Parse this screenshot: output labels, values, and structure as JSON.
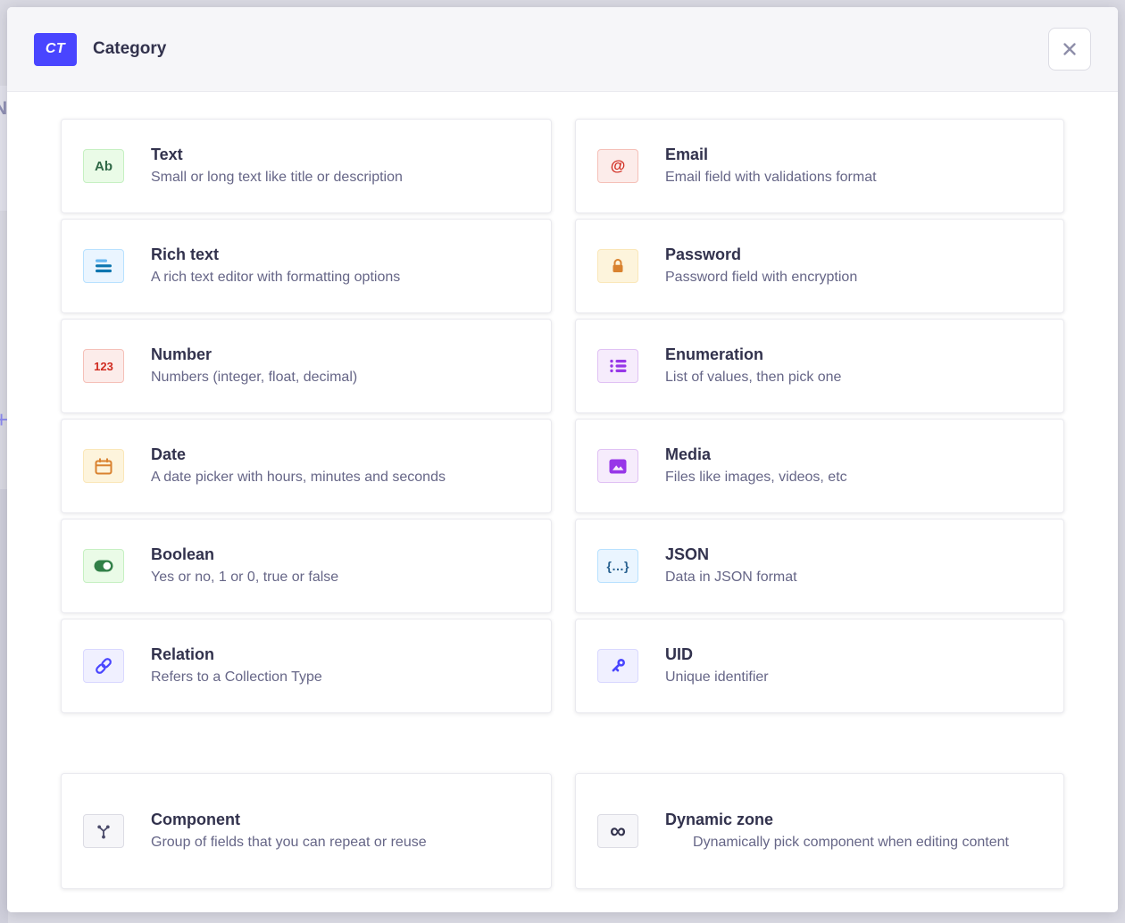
{
  "backdrop": {
    "glyphs": [
      "N",
      "+"
    ]
  },
  "modal": {
    "badge_label": "CT",
    "title": "Category",
    "close_icon": "x"
  },
  "colors": {
    "accent": "#4945ff",
    "header_bg": "#f6f6f9",
    "modal_bg": "#ffffff",
    "card_border": "#eaeaef",
    "title_text": "#32324d",
    "description_text": "#666687",
    "close_icon": "#8e8ea9"
  },
  "fields": [
    {
      "id": "text",
      "title": "Text",
      "description": "Small or long text like title or description",
      "icon": "ab-icon",
      "icon_kind": "glyph",
      "glyph": "Ab",
      "glyph_size": 15,
      "icon_bg": "#eafbe7",
      "icon_border": "#c6f0c2",
      "icon_fg": "#2f6846"
    },
    {
      "id": "email",
      "title": "Email",
      "description": "Email field with validations format",
      "icon": "at-sign-icon",
      "icon_kind": "glyph",
      "glyph": "@",
      "glyph_size": 17,
      "icon_bg": "#fcecea",
      "icon_border": "#f5c0b8",
      "icon_fg": "#d02b20"
    },
    {
      "id": "richtext",
      "title": "Rich text",
      "description": "A rich text editor with formatting options",
      "icon": "text-lines-icon",
      "icon_kind": "richtext",
      "glyph": "",
      "glyph_size": 0,
      "icon_bg": "#eaf5ff",
      "icon_border": "#b8e1ff",
      "icon_fg": "#0c75af",
      "icon_fg2": "#66b7f1"
    },
    {
      "id": "password",
      "title": "Password",
      "description": "Password field with encryption",
      "icon": "lock-icon",
      "icon_kind": "lock",
      "glyph": "",
      "glyph_size": 0,
      "icon_bg": "#fdf4dc",
      "icon_border": "#fae7b9",
      "icon_fg": "#d9822f"
    },
    {
      "id": "number",
      "title": "Number",
      "description": "Numbers (integer, float, decimal)",
      "icon": "123-icon",
      "icon_kind": "glyph",
      "glyph": "123",
      "glyph_size": 13,
      "icon_bg": "#fcecea",
      "icon_border": "#f5c0b8",
      "icon_fg": "#d02b20"
    },
    {
      "id": "enumeration",
      "title": "Enumeration",
      "description": "List of values, then pick one",
      "icon": "bullet-list-icon",
      "icon_kind": "list",
      "glyph": "",
      "glyph_size": 0,
      "icon_bg": "#f6ecfc",
      "icon_border": "#e0c1f4",
      "icon_fg": "#9736e8"
    },
    {
      "id": "date",
      "title": "Date",
      "description": "A date picker with hours, minutes and seconds",
      "icon": "calendar-icon",
      "icon_kind": "calendar",
      "glyph": "",
      "glyph_size": 0,
      "icon_bg": "#fdf4dc",
      "icon_border": "#fae7b9",
      "icon_fg": "#d9822f"
    },
    {
      "id": "media",
      "title": "Media",
      "description": "Files like images, videos, etc",
      "icon": "picture-icon",
      "icon_kind": "picture",
      "glyph": "",
      "glyph_size": 0,
      "icon_bg": "#f6ecfc",
      "icon_border": "#e0c1f4",
      "icon_fg": "#9736e8"
    },
    {
      "id": "boolean",
      "title": "Boolean",
      "description": "Yes or no, 1 or 0, true or false",
      "icon": "toggle-icon",
      "icon_kind": "toggle",
      "glyph": "",
      "glyph_size": 0,
      "icon_bg": "#eafbe7",
      "icon_border": "#c6f0c2",
      "icon_fg": "#328048"
    },
    {
      "id": "json",
      "title": "JSON",
      "description": "Data in JSON format",
      "icon": "braces-icon",
      "icon_kind": "glyph",
      "glyph": "{…}",
      "glyph_size": 14,
      "icon_bg": "#eaf5ff",
      "icon_border": "#b8e1ff",
      "icon_fg": "#27608f"
    },
    {
      "id": "relation",
      "title": "Relation",
      "description": "Refers to a Collection Type",
      "icon": "chain-link-icon",
      "icon_kind": "link",
      "glyph": "",
      "glyph_size": 0,
      "icon_bg": "#f0f0ff",
      "icon_border": "#d9d8ff",
      "icon_fg": "#4945ff"
    },
    {
      "id": "uid",
      "title": "UID",
      "description": "Unique identifier",
      "icon": "key-icon",
      "icon_kind": "key",
      "glyph": "",
      "glyph_size": 0,
      "icon_bg": "#f0f0ff",
      "icon_border": "#d9d8ff",
      "icon_fg": "#4945ff"
    }
  ],
  "advanced_fields": [
    {
      "id": "component",
      "title": "Component",
      "description": "Group of fields that you can repeat or reuse",
      "icon": "branch-icon",
      "icon_kind": "branch",
      "glyph": "",
      "glyph_size": 0,
      "icon_bg": "#f6f6f9",
      "icon_border": "#dcdce4",
      "icon_fg": "#4a4a6a",
      "center_desc": false
    },
    {
      "id": "dynamiczone",
      "title": "Dynamic zone",
      "description": "Dynamically pick component when editing content",
      "icon": "infinity-icon",
      "icon_kind": "glyph",
      "glyph": "∞",
      "glyph_size": 25,
      "icon_bg": "#f6f6f9",
      "icon_border": "#dcdce4",
      "icon_fg": "#32324d",
      "center_desc": true
    }
  ]
}
